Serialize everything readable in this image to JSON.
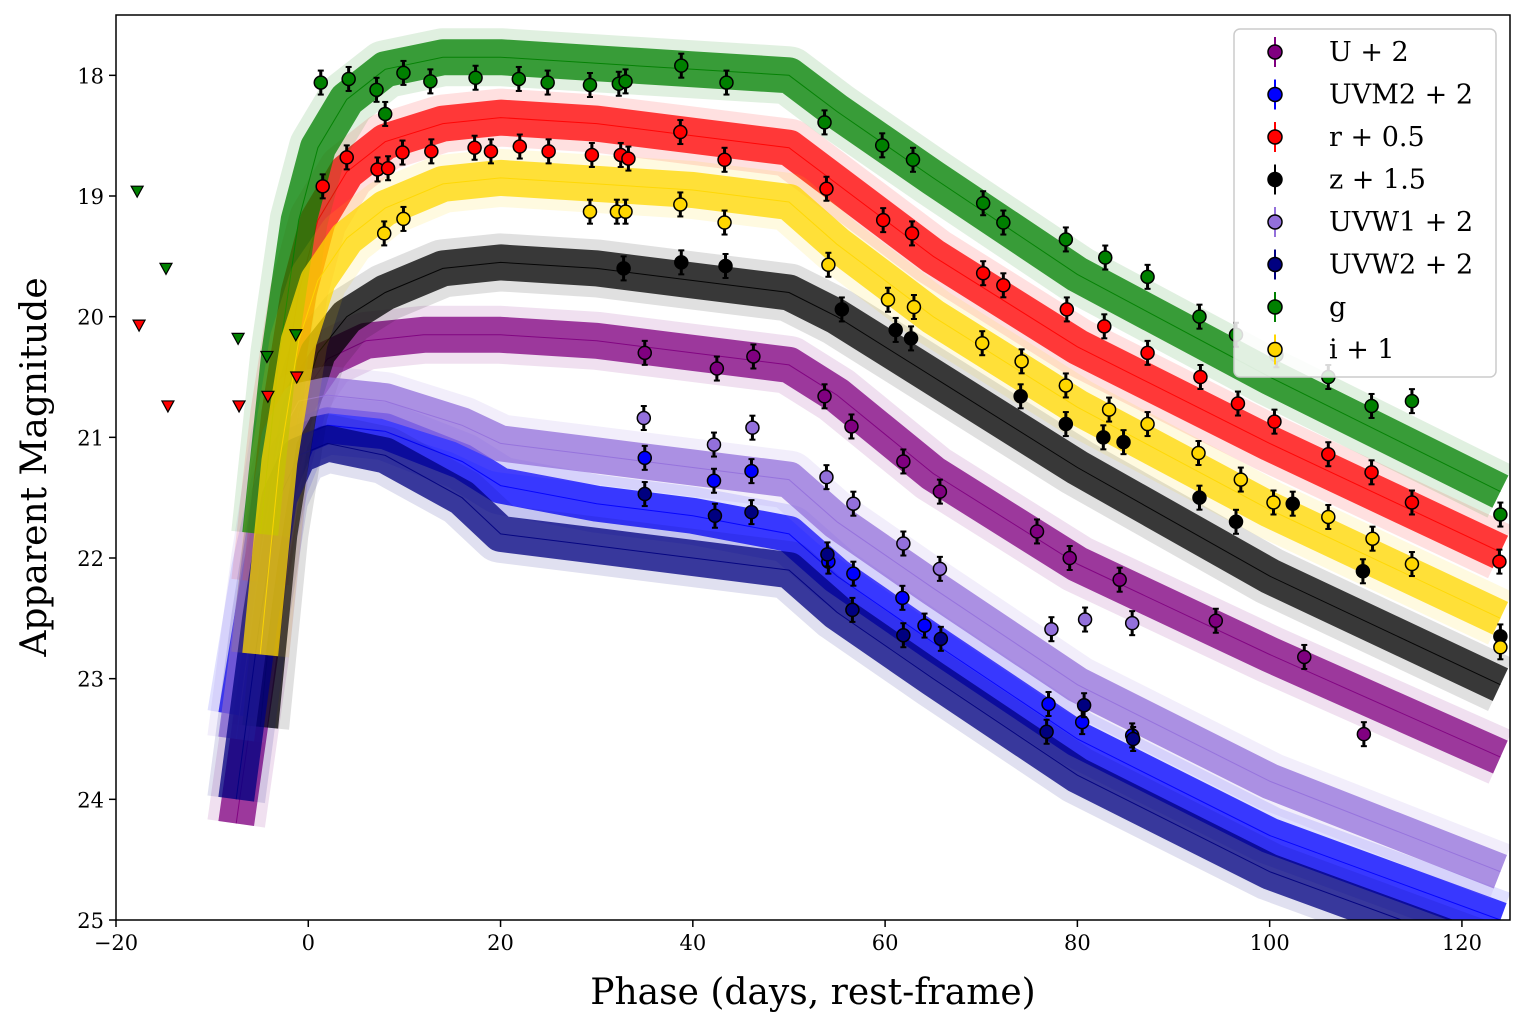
{
  "chart_data": {
    "type": "scatter",
    "title": "",
    "xlabel": "Phase (days, rest-frame)",
    "ylabel": "Apparent Magnitude",
    "xlim": [
      -20,
      125
    ],
    "ylim": [
      25,
      17.5
    ],
    "y_inverted": true,
    "xticks": [
      -20,
      0,
      20,
      40,
      60,
      80,
      100,
      120
    ],
    "xtick_labels": [
      "−20",
      "0",
      "20",
      "40",
      "60",
      "80",
      "100",
      "120"
    ],
    "yticks": [
      18,
      19,
      20,
      21,
      22,
      23,
      24,
      25
    ],
    "ytick_labels": [
      "18",
      "19",
      "20",
      "21",
      "22",
      "23",
      "24",
      "25"
    ],
    "legend_position": "top-right",
    "series": [
      {
        "name": "U + 2",
        "color": "#800080",
        "marker": "filled",
        "model": [
          [
            -7.5,
            24.2
          ],
          [
            -5,
            22.8
          ],
          [
            -3,
            21.3
          ],
          [
            -1,
            20.7
          ],
          [
            2,
            20.35
          ],
          [
            6,
            20.2
          ],
          [
            12,
            20.15
          ],
          [
            20,
            20.15
          ],
          [
            30,
            20.2
          ],
          [
            40,
            20.3
          ],
          [
            50,
            20.4
          ],
          [
            55,
            20.65
          ],
          [
            65,
            21.3
          ],
          [
            80,
            22.05
          ],
          [
            100,
            22.8
          ],
          [
            124,
            23.65
          ]
        ],
        "points": [
          [
            35,
            20.3
          ],
          [
            42.5,
            20.43
          ],
          [
            46.3,
            20.33
          ],
          [
            53.7,
            20.66
          ],
          [
            56.5,
            20.91
          ],
          [
            61.9,
            21.2
          ],
          [
            65.7,
            21.45
          ],
          [
            75.8,
            21.78
          ],
          [
            79.2,
            22.0
          ],
          [
            84.4,
            22.18
          ],
          [
            94.4,
            22.52
          ],
          [
            103.6,
            22.82
          ],
          [
            109.8,
            23.46
          ]
        ]
      },
      {
        "name": "UVM2 + 2",
        "color": "#0000ff",
        "marker": "filled",
        "model": [
          [
            -7.5,
            23.3
          ],
          [
            -5,
            22.1
          ],
          [
            -3,
            21.4
          ],
          [
            -1,
            21.0
          ],
          [
            2,
            20.9
          ],
          [
            8,
            20.95
          ],
          [
            16,
            21.2
          ],
          [
            20,
            21.4
          ],
          [
            30,
            21.55
          ],
          [
            40,
            21.65
          ],
          [
            50,
            21.8
          ],
          [
            55,
            22.15
          ],
          [
            65,
            22.7
          ],
          [
            80,
            23.5
          ],
          [
            100,
            24.3
          ],
          [
            124,
            25.0
          ]
        ],
        "points": [
          [
            35,
            21.17
          ],
          [
            42.2,
            21.36
          ],
          [
            46.1,
            21.28
          ],
          [
            54.1,
            22.03
          ],
          [
            56.7,
            22.13
          ],
          [
            61.8,
            22.33
          ],
          [
            64.1,
            22.56
          ],
          [
            77,
            23.21
          ],
          [
            80.5,
            23.36
          ],
          [
            85.7,
            23.47
          ]
        ]
      },
      {
        "name": "r + 0.5",
        "color": "#ff0000",
        "marker": "filled",
        "model": [
          [
            -5,
            22.2
          ],
          [
            -3,
            20.8
          ],
          [
            -1,
            19.8
          ],
          [
            1,
            19.2
          ],
          [
            4,
            18.8
          ],
          [
            8,
            18.55
          ],
          [
            14,
            18.4
          ],
          [
            20,
            18.35
          ],
          [
            30,
            18.4
          ],
          [
            40,
            18.5
          ],
          [
            50,
            18.6
          ],
          [
            55,
            18.9
          ],
          [
            65,
            19.5
          ],
          [
            80,
            20.25
          ],
          [
            100,
            21.05
          ],
          [
            124,
            21.95
          ]
        ],
        "points": [
          [
            1.5,
            18.92
          ],
          [
            4,
            18.68
          ],
          [
            7.2,
            18.78
          ],
          [
            8.3,
            18.77
          ],
          [
            9.8,
            18.64
          ],
          [
            12.8,
            18.63
          ],
          [
            17.3,
            18.6
          ],
          [
            19,
            18.63
          ],
          [
            22,
            18.59
          ],
          [
            25,
            18.63
          ],
          [
            29.5,
            18.66
          ],
          [
            32.5,
            18.66
          ],
          [
            33.3,
            18.69
          ],
          [
            38.7,
            18.47
          ],
          [
            43.3,
            18.7
          ],
          [
            53.9,
            18.94
          ],
          [
            59.8,
            19.2
          ],
          [
            62.8,
            19.31
          ],
          [
            70.2,
            19.64
          ],
          [
            72.3,
            19.74
          ],
          [
            78.9,
            19.94
          ],
          [
            82.8,
            20.08
          ],
          [
            87.3,
            20.3
          ],
          [
            92.8,
            20.5
          ],
          [
            96.7,
            20.72
          ],
          [
            100.5,
            20.87
          ],
          [
            106.1,
            21.14
          ],
          [
            110.6,
            21.29
          ],
          [
            114.8,
            21.54
          ],
          [
            123.9,
            22.03
          ]
        ]
      },
      {
        "name": "z + 1.5",
        "color": "#000000",
        "marker": "filled",
        "model": [
          [
            -5,
            23.4
          ],
          [
            -3,
            21.8
          ],
          [
            -1,
            20.8
          ],
          [
            1,
            20.3
          ],
          [
            4,
            20.0
          ],
          [
            8,
            19.8
          ],
          [
            14,
            19.6
          ],
          [
            20,
            19.55
          ],
          [
            30,
            19.6
          ],
          [
            40,
            19.7
          ],
          [
            50,
            19.8
          ],
          [
            55,
            20.0
          ],
          [
            65,
            20.5
          ],
          [
            80,
            21.25
          ],
          [
            100,
            22.15
          ],
          [
            124,
            23.05
          ]
        ],
        "points": [
          [
            38.8,
            19.55
          ],
          [
            43.4,
            19.58
          ],
          [
            32.8,
            19.6
          ],
          [
            55.5,
            19.94
          ],
          [
            61.1,
            20.11
          ],
          [
            62.7,
            20.18
          ],
          [
            74.1,
            20.66
          ],
          [
            78.8,
            20.89
          ],
          [
            82.7,
            21.0
          ],
          [
            84.8,
            21.04
          ],
          [
            92.7,
            21.5
          ],
          [
            96.5,
            21.7
          ],
          [
            102.4,
            21.55
          ],
          [
            109.7,
            22.11
          ],
          [
            124,
            22.65
          ]
        ]
      },
      {
        "name": "UVW1 + 2",
        "color": "#9370db",
        "marker": "open",
        "model": [
          [
            -7.5,
            23.5
          ],
          [
            -5,
            22.0
          ],
          [
            -3,
            21.0
          ],
          [
            -1,
            20.7
          ],
          [
            2,
            20.65
          ],
          [
            8,
            20.7
          ],
          [
            16,
            20.9
          ],
          [
            20,
            21.05
          ],
          [
            30,
            21.15
          ],
          [
            40,
            21.25
          ],
          [
            50,
            21.35
          ],
          [
            55,
            21.7
          ],
          [
            65,
            22.25
          ],
          [
            80,
            23.05
          ],
          [
            100,
            23.85
          ],
          [
            124,
            24.6
          ]
        ],
        "points": [
          [
            34.9,
            20.84
          ],
          [
            42.2,
            21.06
          ],
          [
            46.2,
            20.92
          ],
          [
            53.9,
            21.33
          ],
          [
            56.7,
            21.55
          ],
          [
            61.9,
            21.88
          ],
          [
            65.7,
            22.09
          ],
          [
            77.3,
            22.59
          ],
          [
            80.8,
            22.51
          ],
          [
            85.7,
            22.54
          ]
        ]
      },
      {
        "name": "UVW2 + 2",
        "color": "#000080",
        "marker": "filled",
        "model": [
          [
            -7.5,
            24.0
          ],
          [
            -5,
            22.5
          ],
          [
            -3,
            21.5
          ],
          [
            -1,
            21.15
          ],
          [
            2,
            21.05
          ],
          [
            8,
            21.15
          ],
          [
            16,
            21.5
          ],
          [
            20,
            21.8
          ],
          [
            30,
            21.9
          ],
          [
            40,
            22.0
          ],
          [
            50,
            22.1
          ],
          [
            55,
            22.45
          ],
          [
            65,
            23.0
          ],
          [
            80,
            23.8
          ],
          [
            100,
            24.6
          ],
          [
            124,
            25.3
          ]
        ],
        "points": [
          [
            35,
            21.47
          ],
          [
            42.3,
            21.65
          ],
          [
            46.1,
            21.62
          ],
          [
            54,
            21.97
          ],
          [
            56.6,
            22.43
          ],
          [
            61.9,
            22.64
          ],
          [
            65.8,
            22.67
          ],
          [
            76.8,
            23.44
          ],
          [
            80.7,
            23.22
          ],
          [
            85.8,
            23.5
          ]
        ]
      },
      {
        "name": "g",
        "color": "#008000",
        "marker": "filled",
        "model": [
          [
            -5,
            21.8
          ],
          [
            -3,
            20.3
          ],
          [
            -1,
            19.2
          ],
          [
            1,
            18.6
          ],
          [
            4,
            18.2
          ],
          [
            8,
            17.95
          ],
          [
            14,
            17.85
          ],
          [
            20,
            17.85
          ],
          [
            30,
            17.9
          ],
          [
            40,
            17.95
          ],
          [
            50,
            18.0
          ],
          [
            55,
            18.3
          ],
          [
            65,
            18.85
          ],
          [
            80,
            19.65
          ],
          [
            100,
            20.5
          ],
          [
            124,
            21.45
          ]
        ],
        "points": [
          [
            1.3,
            18.06
          ],
          [
            4.2,
            18.03
          ],
          [
            7.1,
            18.12
          ],
          [
            8,
            18.32
          ],
          [
            9.9,
            17.98
          ],
          [
            12.7,
            18.05
          ],
          [
            17.4,
            18.02
          ],
          [
            21.9,
            18.03
          ],
          [
            24.9,
            18.06
          ],
          [
            29.3,
            18.08
          ],
          [
            32.3,
            18.07
          ],
          [
            33,
            18.05
          ],
          [
            38.8,
            17.92
          ],
          [
            43.5,
            18.06
          ],
          [
            53.7,
            18.39
          ],
          [
            59.7,
            18.58
          ],
          [
            62.9,
            18.7
          ],
          [
            70.2,
            19.06
          ],
          [
            72.3,
            19.22
          ],
          [
            78.8,
            19.36
          ],
          [
            82.9,
            19.51
          ],
          [
            87.3,
            19.67
          ],
          [
            92.7,
            20.0
          ],
          [
            96.5,
            20.15
          ],
          [
            100.7,
            20.32
          ],
          [
            106.1,
            20.5
          ],
          [
            110.6,
            20.74
          ],
          [
            114.8,
            20.7
          ],
          [
            124,
            21.64
          ]
        ]
      },
      {
        "name": "i + 1",
        "color": "#ffd700",
        "marker": "open",
        "model": [
          [
            -5,
            22.8
          ],
          [
            -3,
            21.2
          ],
          [
            -1,
            20.2
          ],
          [
            1,
            19.7
          ],
          [
            4,
            19.35
          ],
          [
            8,
            19.1
          ],
          [
            14,
            18.9
          ],
          [
            20,
            18.85
          ],
          [
            30,
            18.9
          ],
          [
            40,
            18.95
          ],
          [
            50,
            19.05
          ],
          [
            55,
            19.4
          ],
          [
            65,
            20.0
          ],
          [
            80,
            20.75
          ],
          [
            100,
            21.6
          ],
          [
            124,
            22.5
          ]
        ],
        "points": [
          [
            7.9,
            19.31
          ],
          [
            9.9,
            19.19
          ],
          [
            29.3,
            19.13
          ],
          [
            32.1,
            19.13
          ],
          [
            33,
            19.13
          ],
          [
            38.7,
            19.07
          ],
          [
            43.3,
            19.22
          ],
          [
            54.1,
            19.57
          ],
          [
            60.3,
            19.86
          ],
          [
            63,
            19.92
          ],
          [
            70.1,
            20.22
          ],
          [
            74.2,
            20.37
          ],
          [
            78.8,
            20.57
          ],
          [
            83.3,
            20.77
          ],
          [
            87.3,
            20.89
          ],
          [
            92.6,
            21.13
          ],
          [
            97,
            21.35
          ],
          [
            100.4,
            21.54
          ],
          [
            106.1,
            21.66
          ],
          [
            110.7,
            21.84
          ],
          [
            114.8,
            22.05
          ],
          [
            124,
            22.74
          ]
        ]
      }
    ],
    "upper_limits": [
      {
        "color": "#008000",
        "points": [
          [
            -17.8,
            18.96
          ],
          [
            -14.8,
            19.6
          ],
          [
            -7.3,
            20.18
          ],
          [
            -4.3,
            20.33
          ],
          [
            -1.3,
            20.15
          ]
        ]
      },
      {
        "color": "#ff0000",
        "points": [
          [
            -17.6,
            20.07
          ],
          [
            -14.6,
            20.74
          ],
          [
            -7.2,
            20.74
          ],
          [
            -4.2,
            20.66
          ],
          [
            -1.2,
            20.5
          ]
        ]
      }
    ]
  }
}
